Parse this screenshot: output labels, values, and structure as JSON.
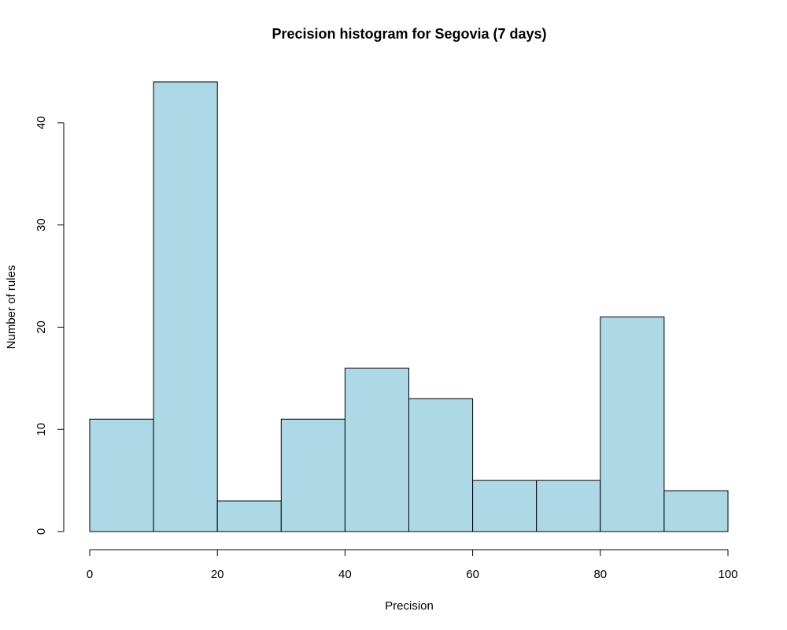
{
  "chart_data": {
    "type": "bar",
    "title": "Precision histogram for Segovia (7 days)",
    "xlabel": "Precision",
    "ylabel": "Number of rules",
    "bins": [
      {
        "start": 0,
        "end": 10,
        "count": 11
      },
      {
        "start": 10,
        "end": 20,
        "count": 44
      },
      {
        "start": 20,
        "end": 30,
        "count": 3
      },
      {
        "start": 30,
        "end": 40,
        "count": 11
      },
      {
        "start": 40,
        "end": 50,
        "count": 16
      },
      {
        "start": 50,
        "end": 60,
        "count": 13
      },
      {
        "start": 60,
        "end": 70,
        "count": 5
      },
      {
        "start": 70,
        "end": 80,
        "count": 5
      },
      {
        "start": 80,
        "end": 90,
        "count": 21
      },
      {
        "start": 90,
        "end": 100,
        "count": 4
      }
    ],
    "xlim": [
      0,
      100
    ],
    "ylim": [
      0,
      44
    ],
    "x_ticks": [
      0,
      20,
      40,
      60,
      80,
      100
    ],
    "y_ticks": [
      0,
      10,
      20,
      30,
      40
    ],
    "grid": false,
    "legend": "none",
    "bar_color": "#add8e6",
    "edge_color": "#000000"
  }
}
